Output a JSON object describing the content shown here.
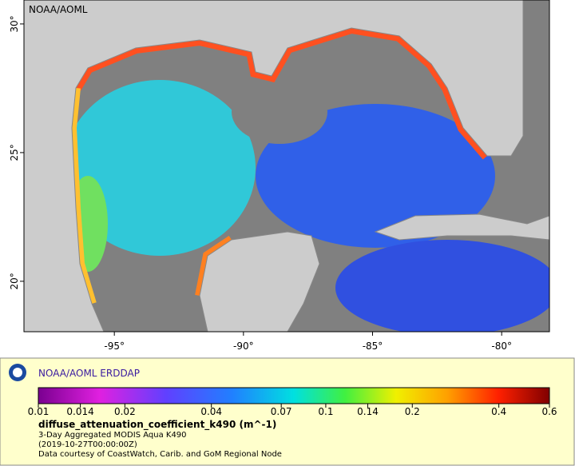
{
  "map": {
    "credit": "NOAA/AOML",
    "xlim": [
      -98.5,
      -78.15
    ],
    "ylim": [
      18.04,
      30.93
    ],
    "xticks": [
      {
        "value": -95,
        "label": "-95°"
      },
      {
        "value": -90,
        "label": "-90°"
      },
      {
        "value": -85,
        "label": "-85°"
      },
      {
        "value": -80,
        "label": "-80°"
      }
    ],
    "yticks": [
      {
        "value": 20,
        "label": "20°"
      },
      {
        "value": 25,
        "label": "25°"
      },
      {
        "value": 30,
        "label": "30°"
      }
    ]
  },
  "legend": {
    "title": "NOAA/AOML ERDDAP",
    "colorbar": {
      "range": [
        0.01,
        0.6
      ],
      "scale": "log",
      "ticks": [
        0.01,
        0.014,
        0.02,
        0.04,
        0.07,
        0.1,
        0.14,
        0.2,
        0.4,
        0.6
      ]
    },
    "variable": "diffuse_attenuation_coefficient_k490 (m^-1)",
    "lines": [
      "3-Day Aggregated MODIS Aqua K490",
      "(2019-10-27T00:00:00Z)",
      "Data courtesy of CoastWatch, Carib. and GoM Regional Node"
    ]
  }
}
